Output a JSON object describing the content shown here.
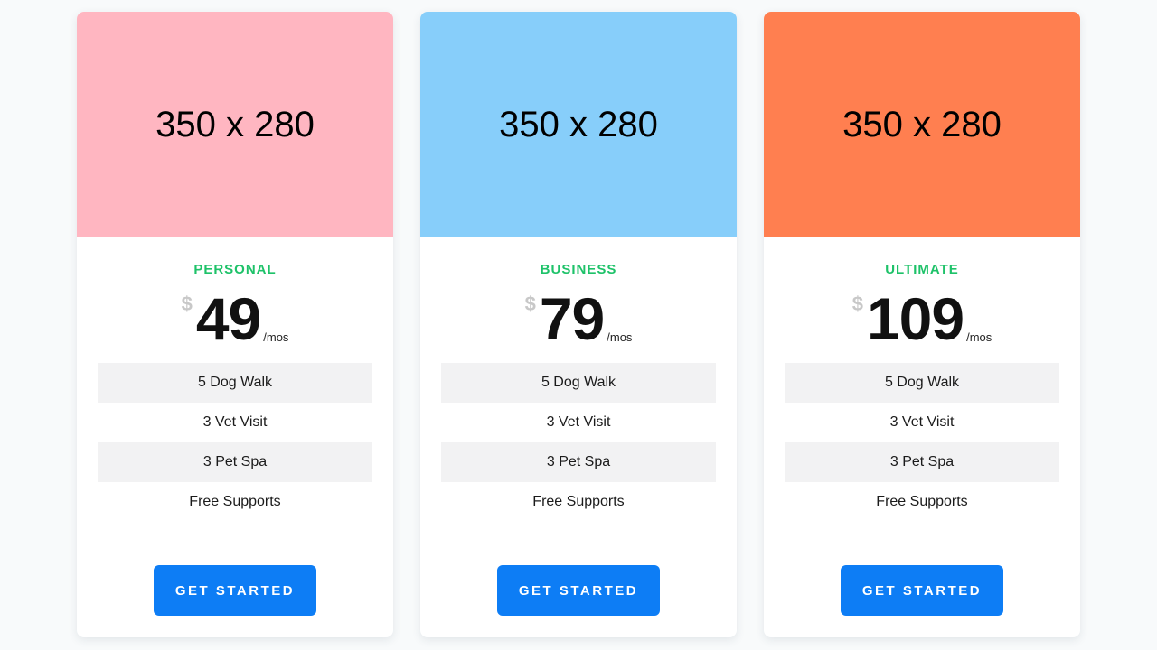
{
  "colors": {
    "page_background": "#f8fafb",
    "card_background": "#ffffff",
    "personal_header": "#ffb6c1",
    "business_header": "#87cefa",
    "ultimate_header": "#ff7f50",
    "plan_title_green": "#1ec269",
    "button_blue": "#0d7df5",
    "feature_stripe_gray": "#f2f2f3",
    "dollar_gray": "#c8c8c8"
  },
  "currency_symbol": "$",
  "period_label": "/mos",
  "cards": [
    {
      "title": "PERSONAL",
      "price": "49",
      "image_label": "350 x 280",
      "features": [
        "5 Dog Walk",
        "3 Vet Visit",
        "3 Pet Spa",
        "Free Supports"
      ],
      "button_label": "GET STARTED"
    },
    {
      "title": "BUSINESS",
      "price": "79",
      "image_label": "350 x 280",
      "features": [
        "5 Dog Walk",
        "3 Vet Visit",
        "3 Pet Spa",
        "Free Supports"
      ],
      "button_label": "GET STARTED"
    },
    {
      "title": "ULTIMATE",
      "price": "109",
      "image_label": "350 x 280",
      "features": [
        "5 Dog Walk",
        "3 Vet Visit",
        "3 Pet Spa",
        "Free Supports"
      ],
      "button_label": "GET STARTED"
    }
  ]
}
